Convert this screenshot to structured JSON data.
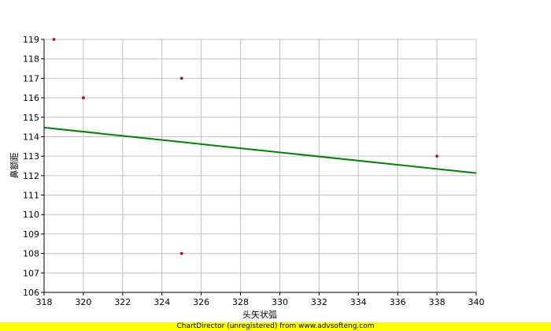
{
  "chart_data": {
    "type": "scatter",
    "xlabel": "头矢状弧",
    "ylabel": "鼻额距",
    "xlim": [
      318,
      340
    ],
    "ylim": [
      106,
      119
    ],
    "x_ticks": [
      318,
      320,
      322,
      324,
      326,
      328,
      330,
      332,
      334,
      336,
      338,
      340
    ],
    "y_ticks": [
      106,
      107,
      108,
      109,
      110,
      111,
      112,
      113,
      114,
      115,
      116,
      117,
      118,
      119
    ],
    "grid": true,
    "points": [
      {
        "x": 318.5,
        "y": 119
      },
      {
        "x": 320,
        "y": 116
      },
      {
        "x": 325,
        "y": 117
      },
      {
        "x": 325,
        "y": 108
      },
      {
        "x": 338,
        "y": 113
      }
    ],
    "trendline": {
      "x": [
        318,
        340
      ],
      "y": [
        114.47,
        112.13
      ]
    },
    "colors": {
      "grid": "#c0c0c0",
      "axis": "#000000",
      "point": "#c00040",
      "trend": "#008000",
      "footer_bg": "#ffff00"
    }
  },
  "footer": {
    "text": "ChartDirector (unregistered) from www.advsofteng.com"
  }
}
